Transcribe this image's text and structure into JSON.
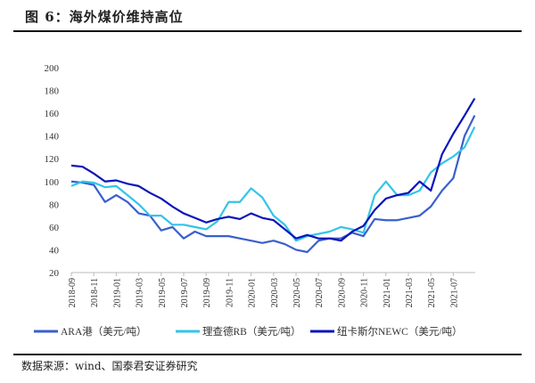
{
  "title": "图 6：海外煤价维持高位",
  "source": "数据来源：wind、国泰君安证券研究",
  "chart_data": {
    "type": "line",
    "title": "海外煤价维持高位",
    "ylim": [
      20,
      200
    ],
    "yticks": [
      20,
      40,
      60,
      80,
      100,
      120,
      140,
      160,
      180,
      200
    ],
    "xticks": [
      "2018-09",
      "2018-11",
      "2019-01",
      "2019-03",
      "2019-05",
      "2019-07",
      "2019-09",
      "2019-11",
      "2020-01",
      "2020-03",
      "2020-05",
      "2020-07",
      "2020-09",
      "2020-11",
      "2021-01",
      "2021-03",
      "2021-05",
      "2021-07"
    ],
    "x_note": "x = months since 2018-09",
    "x": [
      0,
      1,
      2,
      3,
      4,
      5,
      6,
      7,
      8,
      9,
      10,
      11,
      12,
      13,
      14,
      15,
      16,
      17,
      18,
      19,
      20,
      21,
      22,
      23,
      24,
      25,
      26,
      27,
      28,
      29,
      30,
      31,
      32,
      33,
      34,
      35,
      35.9
    ],
    "legend_position": "bottom",
    "series": [
      {
        "name": "ARA港（美元/吨）",
        "color": "#3a5fcd",
        "values": [
          100,
          99,
          97,
          82,
          88,
          82,
          72,
          70,
          57,
          60,
          50,
          56,
          52,
          52,
          52,
          50,
          48,
          46,
          48,
          45,
          40,
          38,
          48,
          50,
          50,
          55,
          52,
          67,
          66,
          66,
          68,
          70,
          78,
          92,
          103,
          140,
          158
        ]
      },
      {
        "name": "理查德RB（美元/吨）",
        "color": "#33c4e8",
        "values": [
          96,
          100,
          99,
          95,
          96,
          88,
          80,
          70,
          70,
          62,
          62,
          60,
          58,
          65,
          82,
          82,
          94,
          86,
          70,
          62,
          48,
          52,
          54,
          56,
          60,
          58,
          55,
          88,
          100,
          88,
          88,
          92,
          108,
          116,
          122,
          130,
          148
        ]
      },
      {
        "name": "纽卡斯尔NEWC（美元/吨）",
        "color": "#0b14b8",
        "values": [
          114,
          113,
          107,
          100,
          101,
          98,
          96,
          90,
          85,
          78,
          72,
          68,
          64,
          67,
          69,
          67,
          72,
          68,
          66,
          58,
          50,
          53,
          50,
          50,
          48,
          56,
          61,
          75,
          85,
          88,
          90,
          100,
          92,
          124,
          142,
          158,
          173
        ]
      }
    ]
  }
}
